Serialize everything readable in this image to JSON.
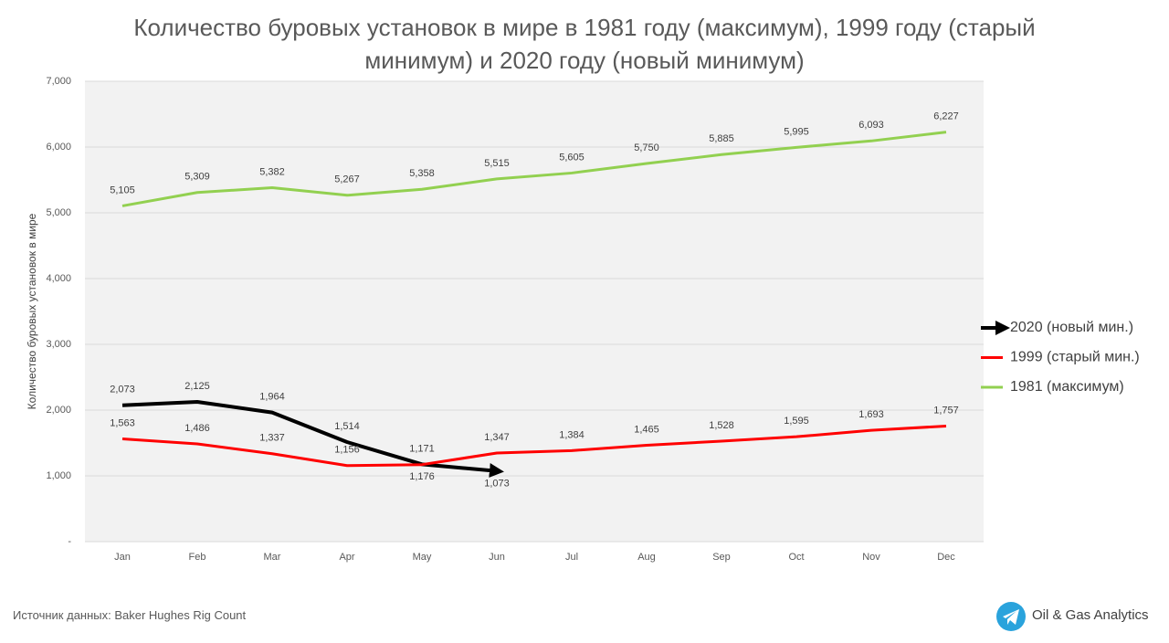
{
  "chart_data": {
    "type": "line",
    "title": "Количество буровых установок в мире в 1981 году (максимум), 1999 году (старый минимум) и 2020 году (новый минимум)",
    "y_label": "Количество буровых установок в мире",
    "categories": [
      "Jan",
      "Feb",
      "Mar",
      "Apr",
      "May",
      "Jun",
      "Jul",
      "Aug",
      "Sep",
      "Oct",
      "Nov",
      "Dec"
    ],
    "series": [
      {
        "name": "2020 (новый мин.)",
        "color": "#000000",
        "values": [
          2073,
          2125,
          1964,
          1514,
          1176,
          1073,
          null,
          null,
          null,
          null,
          null,
          null
        ],
        "value_labels": [
          "2,073",
          "2,125",
          "1,964",
          "1,514",
          "1,176",
          "1,073",
          null,
          null,
          null,
          null,
          null,
          null
        ]
      },
      {
        "name": "1999 (старый мин.)",
        "color": "#ff0000",
        "values": [
          1563,
          1486,
          1337,
          1156,
          1171,
          1347,
          1384,
          1465,
          1528,
          1595,
          1693,
          1757
        ],
        "value_labels": [
          "1,563",
          "1,486",
          "1,337",
          "1,156",
          "1,171",
          "1,347",
          "1,384",
          "1,465",
          "1,528",
          "1,595",
          "1,693",
          "1,757"
        ]
      },
      {
        "name": "1981 (максимум)",
        "color": "#92d050",
        "values": [
          5105,
          5309,
          5382,
          5267,
          5358,
          5515,
          5605,
          5750,
          5885,
          5995,
          6093,
          6227
        ],
        "value_labels": [
          "5,105",
          "5,309",
          "5,382",
          "5,267",
          "5,358",
          "5,515",
          "5,605",
          "5,750",
          "5,885",
          "5,995",
          "6,093",
          "6,227"
        ]
      }
    ],
    "ylim": [
      0,
      7000
    ],
    "yticks": [
      {
        "value": 0,
        "label": "-"
      },
      {
        "value": 1000,
        "label": "1,000"
      },
      {
        "value": 2000,
        "label": "2,000"
      },
      {
        "value": 3000,
        "label": "3,000"
      },
      {
        "value": 4000,
        "label": "4,000"
      },
      {
        "value": 5000,
        "label": "5,000"
      },
      {
        "value": 6000,
        "label": "6,000"
      },
      {
        "value": 7000,
        "label": "7,000"
      }
    ],
    "grid": true,
    "legend": "right"
  },
  "footer": {
    "source": "Источник данных: Baker Hughes Rig Count",
    "brand": "Oil & Gas Analytics"
  }
}
